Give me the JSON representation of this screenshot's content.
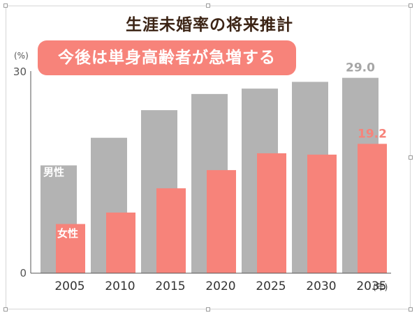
{
  "chart_data": {
    "type": "bar",
    "title": "生涯未婚率の将来推計",
    "annotation": "今後は単身高齢者が急増する",
    "yunit": "(%)",
    "xunit": "(年)",
    "ylim": [
      0,
      30
    ],
    "yticks": [
      "0",
      "30"
    ],
    "categories": [
      "2005",
      "2010",
      "2015",
      "2020",
      "2025",
      "2030",
      "2035"
    ],
    "series": [
      {
        "name": "男性",
        "color": "#b3b3b3",
        "values": [
          16.0,
          20.1,
          24.2,
          26.6,
          27.4,
          28.4,
          29.0
        ]
      },
      {
        "name": "女性",
        "color": "#f7837a",
        "values": [
          7.3,
          9.0,
          12.6,
          15.3,
          17.8,
          17.6,
          19.2
        ]
      }
    ],
    "value_labels": [
      {
        "series": 0,
        "index": 6,
        "text": "29.0"
      },
      {
        "series": 1,
        "index": 6,
        "text": "19.2"
      }
    ],
    "grid": false,
    "legend": "inline"
  }
}
